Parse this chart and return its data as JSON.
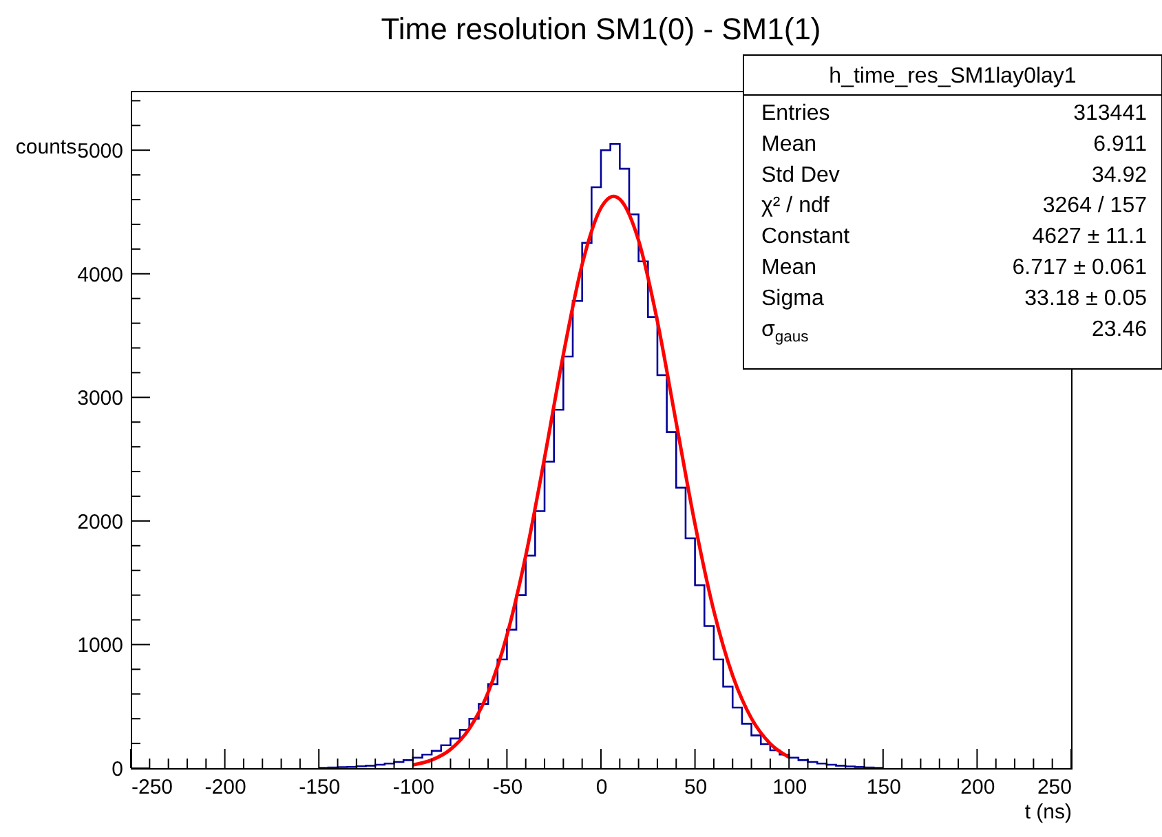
{
  "chart_data": {
    "type": "histogram",
    "title": "Time resolution SM1(0) - SM1(1)",
    "xlabel": "t (ns)",
    "ylabel": "counts",
    "color": "#000099",
    "bins": [
      -150,
      -145,
      -140,
      -135,
      -130,
      -125,
      -120,
      -115,
      -110,
      -105,
      -100,
      -95,
      -90,
      -85,
      -80,
      -75,
      -70,
      -65,
      -60,
      -55,
      -50,
      -45,
      -40,
      -35,
      -30,
      -25,
      -20,
      -15,
      -10,
      -5,
      0,
      5,
      10,
      15,
      20,
      25,
      30,
      35,
      40,
      45,
      50,
      55,
      60,
      65,
      70,
      75,
      80,
      85,
      90,
      95,
      100,
      105,
      110,
      115,
      120,
      125,
      130,
      135,
      140,
      145,
      150
    ],
    "values": [
      3,
      5,
      8,
      10,
      15,
      20,
      28,
      38,
      50,
      65,
      85,
      110,
      140,
      185,
      240,
      310,
      400,
      520,
      680,
      880,
      1120,
      1400,
      1720,
      2080,
      2480,
      2900,
      3330,
      3780,
      4250,
      4700,
      5000,
      5050,
      4850,
      4480,
      4100,
      3650,
      3180,
      2720,
      2270,
      1860,
      1480,
      1150,
      880,
      660,
      490,
      360,
      265,
      195,
      145,
      110,
      85,
      65,
      50,
      38,
      28,
      20,
      14,
      9,
      5,
      3
    ],
    "series": [
      {
        "type": "line",
        "color": "#ff0000",
        "x": [
          -100,
          -90,
          -80,
          -70,
          -60,
          -50,
          -40,
          -30,
          -20,
          -10,
          0,
          6.7,
          10,
          20,
          30,
          40,
          50,
          60,
          70,
          80,
          90,
          100
        ],
        "values": [
          26,
          66,
          152,
          320,
          613,
          1075,
          1719,
          2510,
          3347,
          4076,
          4533,
          4627,
          4604,
          4270,
          3616,
          2796,
          1975,
          1273,
          750,
          403,
          198,
          89
        ]
      }
    ],
    "xlim": [
      -250,
      250
    ],
    "xticks": [
      -250,
      {
        "value": -240,
        "label": null
      },
      {
        "value": -230,
        "label": null
      },
      {
        "value": -220,
        "label": null
      },
      {
        "value": -210,
        "label": null
      },
      -200,
      {
        "value": -190,
        "label": null
      },
      {
        "value": -180,
        "label": null
      },
      {
        "value": -170,
        "label": null
      },
      {
        "value": -160,
        "label": null
      },
      -150,
      {
        "value": -140,
        "label": null
      },
      {
        "value": -130,
        "label": null
      },
      {
        "value": -120,
        "label": null
      },
      {
        "value": -110,
        "label": null
      },
      -100,
      {
        "value": -90,
        "label": null
      },
      {
        "value": -80,
        "label": null
      },
      {
        "value": -70,
        "label": null
      },
      {
        "value": -60,
        "label": null
      },
      -50,
      {
        "value": -40,
        "label": null
      },
      {
        "value": -30,
        "label": null
      },
      {
        "value": -20,
        "label": null
      },
      {
        "value": -10,
        "label": null
      },
      0,
      {
        "value": 10,
        "label": null
      },
      {
        "value": 20,
        "label": null
      },
      {
        "value": 30,
        "label": null
      },
      {
        "value": 40,
        "label": null
      },
      50,
      {
        "value": 60,
        "label": null
      },
      {
        "value": 70,
        "label": null
      },
      {
        "value": 80,
        "label": null
      },
      {
        "value": 90,
        "label": null
      },
      100,
      {
        "value": 110,
        "label": null
      },
      {
        "value": 120,
        "label": null
      },
      {
        "value": 130,
        "label": null
      },
      {
        "value": 140,
        "label": null
      },
      150,
      {
        "value": 160,
        "label": null
      },
      {
        "value": 170,
        "label": null
      },
      {
        "value": 180,
        "label": null
      },
      {
        "value": 190,
        "label": null
      },
      200,
      {
        "value": 210,
        "label": null
      },
      {
        "value": 220,
        "label": null
      },
      {
        "value": 230,
        "label": null
      },
      {
        "value": 240,
        "label": null
      },
      250
    ],
    "ylim": [
      0,
      5480
    ],
    "yticks": [
      0,
      {
        "value": 200,
        "label": null
      },
      {
        "value": 400,
        "label": null
      },
      {
        "value": 600,
        "label": null
      },
      {
        "value": 800,
        "label": null
      },
      1000,
      {
        "value": 1200,
        "label": null
      },
      {
        "value": 1400,
        "label": null
      },
      {
        "value": 1600,
        "label": null
      },
      {
        "value": 1800,
        "label": null
      },
      2000,
      {
        "value": 2200,
        "label": null
      },
      {
        "value": 2400,
        "label": null
      },
      {
        "value": 2600,
        "label": null
      },
      {
        "value": 2800,
        "label": null
      },
      3000,
      {
        "value": 3200,
        "label": null
      },
      {
        "value": 3400,
        "label": null
      },
      {
        "value": 3600,
        "label": null
      },
      {
        "value": 3800,
        "label": null
      },
      4000,
      {
        "value": 4200,
        "label": null
      },
      {
        "value": 4400,
        "label": null
      },
      {
        "value": 4600,
        "label": null
      },
      {
        "value": 4800,
        "label": null
      },
      5000,
      {
        "value": 5200,
        "label": null
      },
      {
        "value": 5400,
        "label": null
      }
    ],
    "grid": false,
    "annotations": [
      "h_time_res_SM1lay0lay1",
      "Entries",
      "313441",
      "Mean",
      "6.911",
      "Std Dev",
      "34.92",
      "χ² / ndf",
      "3264 / 157",
      "Constant",
      "4627 ± 11.1",
      "Mean",
      "6.717 ± 0.061",
      "Sigma",
      "33.18 ± 0.05",
      "σ$_{gaus}$",
      "23.46"
    ]
  }
}
